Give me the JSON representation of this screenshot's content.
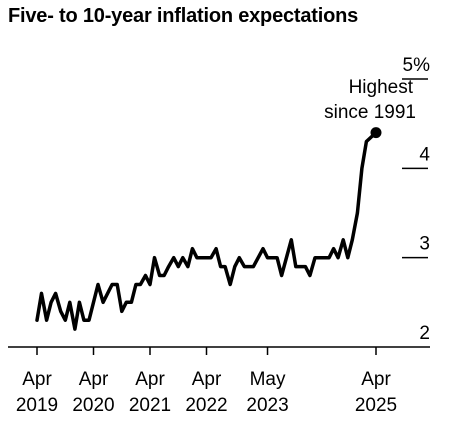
{
  "chart_data": {
    "type": "line",
    "title": "Five- to 10-year inflation expectations",
    "ylim": [
      2,
      5
    ],
    "y_ticks": [
      "2",
      "3",
      "4",
      "5%"
    ],
    "x_ticks": [
      {
        "month": "Apr",
        "year": "2019",
        "x": 2019.25
      },
      {
        "month": "Apr",
        "year": "2020",
        "x": 2020.25
      },
      {
        "month": "Apr",
        "year": "2021",
        "x": 2021.25
      },
      {
        "month": "Apr",
        "year": "2022",
        "x": 2022.25
      },
      {
        "month": "May",
        "year": "2023",
        "x": 2023.33
      },
      {
        "month": "Apr",
        "year": "2025",
        "x": 2025.25
      }
    ],
    "series": [
      {
        "values": [
          [
            2019.25,
            2.3
          ],
          [
            2019.33,
            2.6
          ],
          [
            2019.42,
            2.3
          ],
          [
            2019.5,
            2.5
          ],
          [
            2019.58,
            2.6
          ],
          [
            2019.67,
            2.4
          ],
          [
            2019.75,
            2.3
          ],
          [
            2019.83,
            2.5
          ],
          [
            2019.92,
            2.2
          ],
          [
            2020.0,
            2.5
          ],
          [
            2020.08,
            2.3
          ],
          [
            2020.17,
            2.3
          ],
          [
            2020.33,
            2.7
          ],
          [
            2020.42,
            2.5
          ],
          [
            2020.58,
            2.7
          ],
          [
            2020.67,
            2.7
          ],
          [
            2020.75,
            2.4
          ],
          [
            2020.83,
            2.5
          ],
          [
            2020.92,
            2.5
          ],
          [
            2021.0,
            2.7
          ],
          [
            2021.08,
            2.7
          ],
          [
            2021.17,
            2.8
          ],
          [
            2021.25,
            2.7
          ],
          [
            2021.33,
            3.0
          ],
          [
            2021.42,
            2.8
          ],
          [
            2021.5,
            2.8
          ],
          [
            2021.58,
            2.9
          ],
          [
            2021.67,
            3.0
          ],
          [
            2021.75,
            2.9
          ],
          [
            2021.83,
            3.0
          ],
          [
            2021.92,
            2.9
          ],
          [
            2022.0,
            3.1
          ],
          [
            2022.08,
            3.0
          ],
          [
            2022.17,
            3.0
          ],
          [
            2022.33,
            3.0
          ],
          [
            2022.42,
            3.1
          ],
          [
            2022.5,
            2.9
          ],
          [
            2022.58,
            2.9
          ],
          [
            2022.67,
            2.7
          ],
          [
            2022.75,
            2.9
          ],
          [
            2022.83,
            3.0
          ],
          [
            2022.92,
            2.9
          ],
          [
            2023.08,
            2.9
          ],
          [
            2023.25,
            3.1
          ],
          [
            2023.33,
            3.0
          ],
          [
            2023.5,
            3.0
          ],
          [
            2023.58,
            2.8
          ],
          [
            2023.75,
            3.2
          ],
          [
            2023.83,
            2.9
          ],
          [
            2024.0,
            2.9
          ],
          [
            2024.08,
            2.8
          ],
          [
            2024.17,
            3.0
          ],
          [
            2024.42,
            3.0
          ],
          [
            2024.5,
            3.1
          ],
          [
            2024.58,
            3.0
          ],
          [
            2024.67,
            3.2
          ],
          [
            2024.75,
            3.0
          ],
          [
            2024.83,
            3.2
          ],
          [
            2024.92,
            3.5
          ],
          [
            2025.0,
            4.0
          ],
          [
            2025.08,
            4.3
          ],
          [
            2025.25,
            4.4
          ]
        ]
      }
    ],
    "annotation": {
      "line1": "Highest",
      "line2": "since 1991"
    },
    "grid": false
  }
}
